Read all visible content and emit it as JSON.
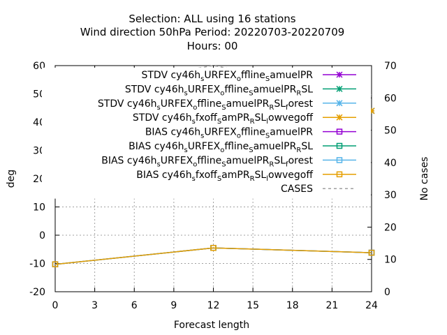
{
  "chart_data": {
    "type": "line",
    "title_lines": [
      "Selection: ALL using    16 stations",
      "Wind direction 50hPa   Period: 20220703-20220709",
      "Hours:  00"
    ],
    "xlabel": "Forecast length",
    "ylabel": "deg",
    "y2label": "No cases",
    "xlim": [
      0,
      24
    ],
    "ylim": [
      -20,
      60
    ],
    "y2lim": [
      0,
      70
    ],
    "xticks": [
      "0",
      "3",
      "6",
      "9",
      "12",
      "15",
      "18",
      "21",
      "24"
    ],
    "yticks": [
      "-20",
      "-10",
      "0",
      "10",
      "20",
      "30",
      "40",
      "50",
      "60"
    ],
    "y2ticks": [
      "0",
      "10",
      "20",
      "30",
      "40",
      "50",
      "60",
      "70"
    ],
    "grid": true,
    "legend_position": "top-right",
    "x": [
      0,
      12,
      24
    ],
    "series": [
      {
        "name": "STDV cy46h_sURFEX_offline_samuelPR",
        "color": "#9400d3",
        "marker": "star",
        "axis": "y",
        "values": [
          38.2,
          57.0,
          44.0
        ],
        "visible": false
      },
      {
        "name": "STDV cy46h_sURFEX_offline_samuelPR_RSL",
        "color": "#009e73",
        "marker": "star",
        "axis": "y",
        "values": [
          38.2,
          57.0,
          44.0
        ],
        "visible": false
      },
      {
        "name": "STDV cy46h_sURFEX_offline_samuelPR_RSL_forest",
        "color": "#56b4e9",
        "marker": "star",
        "axis": "y",
        "values": [
          38.2,
          57.0,
          44.0
        ],
        "visible": false
      },
      {
        "name": "STDV cy46h_sfxoff_samPR_RSL_lowvegoff",
        "color": "#e69f00",
        "marker": "star",
        "axis": "y",
        "values": [
          38.2,
          57.0,
          44.0
        ],
        "visible": true
      },
      {
        "name": "BIAS cy46h_sURFEX_offline_samuelPR",
        "color": "#9400d3",
        "marker": "square",
        "axis": "y",
        "values": [
          -10.3,
          -4.5,
          -6.2
        ],
        "visible": false
      },
      {
        "name": "BIAS cy46h_sURFEX_offline_samuelPR_RSL",
        "color": "#009e73",
        "marker": "square",
        "axis": "y",
        "values": [
          -10.3,
          -4.5,
          -6.2
        ],
        "visible": false
      },
      {
        "name": "BIAS cy46h_sURFEX_offline_samuelPR_RSL_forest",
        "color": "#56b4e9",
        "marker": "square",
        "axis": "y",
        "values": [
          -10.3,
          -4.5,
          -6.2
        ],
        "visible": false
      },
      {
        "name": "BIAS cy46h_sfxoff_samPR_RSL_lowvegoff",
        "color": "#e69f00",
        "marker": "square",
        "axis": "y",
        "values": [
          -10.3,
          -4.5,
          -6.2
        ],
        "visible": true
      },
      {
        "name": "CASES",
        "color": "#a0a0a0",
        "marker": "none",
        "axis": "y2",
        "dashed": true,
        "values": [
          62,
          70,
          61
        ],
        "visible": true
      }
    ],
    "legend_entries": [
      {
        "parts": [
          [
            "STDV cy46h",
            ""
          ],
          [
            "s",
            "sub"
          ],
          [
            "URFEX",
            ""
          ],
          [
            "o",
            "sub"
          ],
          [
            "ffline",
            ""
          ],
          [
            "S",
            "sub"
          ],
          [
            "amuelPR",
            ""
          ]
        ],
        "color": "#9400d3",
        "marker": "star",
        "dashed": false
      },
      {
        "parts": [
          [
            "STDV cy46h",
            ""
          ],
          [
            "s",
            "sub"
          ],
          [
            "URFEX",
            ""
          ],
          [
            "o",
            "sub"
          ],
          [
            "ffline",
            ""
          ],
          [
            "S",
            "sub"
          ],
          [
            "amuelPR",
            ""
          ],
          [
            "R",
            "sub"
          ],
          [
            "SL",
            ""
          ]
        ],
        "color": "#009e73",
        "marker": "star",
        "dashed": false
      },
      {
        "parts": [
          [
            "STDV cy46h",
            ""
          ],
          [
            "s",
            "sub"
          ],
          [
            "URFEX",
            ""
          ],
          [
            "o",
            "sub"
          ],
          [
            "ffline",
            ""
          ],
          [
            "S",
            "sub"
          ],
          [
            "amuelPR",
            ""
          ],
          [
            "R",
            "sub"
          ],
          [
            "SL",
            ""
          ],
          [
            "f",
            "sub"
          ],
          [
            "orest",
            ""
          ]
        ],
        "color": "#56b4e9",
        "marker": "star",
        "dashed": false
      },
      {
        "parts": [
          [
            "STDV cy46h",
            ""
          ],
          [
            "s",
            "sub"
          ],
          [
            "fxoff",
            ""
          ],
          [
            "S",
            "sub"
          ],
          [
            "amPR",
            ""
          ],
          [
            "R",
            "sub"
          ],
          [
            "SL",
            ""
          ],
          [
            "l",
            "sub"
          ],
          [
            "owvegoff",
            ""
          ]
        ],
        "color": "#e69f00",
        "marker": "star",
        "dashed": false
      },
      {
        "parts": [
          [
            "BIAS cy46h",
            ""
          ],
          [
            "s",
            "sub"
          ],
          [
            "URFEX",
            ""
          ],
          [
            "o",
            "sub"
          ],
          [
            "ffline",
            ""
          ],
          [
            "S",
            "sub"
          ],
          [
            "amuelPR",
            ""
          ]
        ],
        "color": "#9400d3",
        "marker": "square",
        "dashed": false
      },
      {
        "parts": [
          [
            "BIAS cy46h",
            ""
          ],
          [
            "s",
            "sub"
          ],
          [
            "URFEX",
            ""
          ],
          [
            "o",
            "sub"
          ],
          [
            "ffline",
            ""
          ],
          [
            "S",
            "sub"
          ],
          [
            "amuelPR",
            ""
          ],
          [
            "R",
            "sub"
          ],
          [
            "SL",
            ""
          ]
        ],
        "color": "#009e73",
        "marker": "square",
        "dashed": false
      },
      {
        "parts": [
          [
            "BIAS cy46h",
            ""
          ],
          [
            "s",
            "sub"
          ],
          [
            "URFEX",
            ""
          ],
          [
            "o",
            "sub"
          ],
          [
            "ffline",
            ""
          ],
          [
            "S",
            "sub"
          ],
          [
            "amuelPR",
            ""
          ],
          [
            "R",
            "sub"
          ],
          [
            "SL",
            ""
          ],
          [
            "f",
            "sub"
          ],
          [
            "orest",
            ""
          ]
        ],
        "color": "#56b4e9",
        "marker": "square",
        "dashed": false
      },
      {
        "parts": [
          [
            "BIAS cy46h",
            ""
          ],
          [
            "s",
            "sub"
          ],
          [
            "fxoff",
            ""
          ],
          [
            "S",
            "sub"
          ],
          [
            "amPR",
            ""
          ],
          [
            "R",
            "sub"
          ],
          [
            "SL",
            ""
          ],
          [
            "l",
            "sub"
          ],
          [
            "owvegoff",
            ""
          ]
        ],
        "color": "#e69f00",
        "marker": "square",
        "dashed": false
      },
      {
        "parts": [
          [
            "CASES",
            ""
          ]
        ],
        "color": "#a0a0a0",
        "marker": "none",
        "dashed": true
      }
    ]
  }
}
